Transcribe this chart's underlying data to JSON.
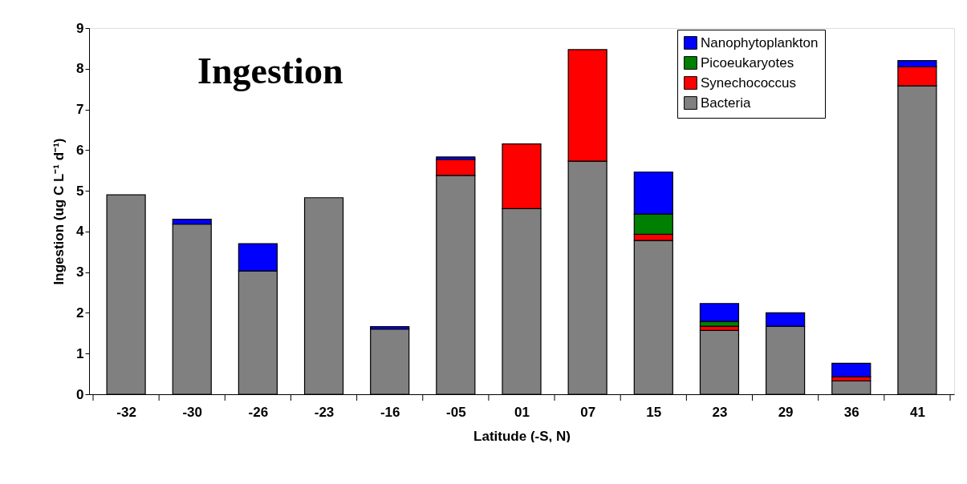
{
  "chart_data": {
    "type": "bar",
    "title": "Ingestion",
    "xlabel": "Latitude (-S, N)",
    "ylabel": "Ingestion (ug C L⁻¹ d⁻¹)",
    "categories": [
      "-32",
      "-30",
      "-26",
      "-23",
      "-16",
      "-05",
      "01",
      "07",
      "15",
      "23",
      "29",
      "36",
      "41"
    ],
    "stacked": true,
    "ylim": [
      0,
      9
    ],
    "yticks": [
      0,
      1,
      2,
      3,
      4,
      5,
      6,
      7,
      8,
      9
    ],
    "grid": false,
    "legend": "top right",
    "series": [
      {
        "name": "Bacteria",
        "color": "#808080",
        "values": [
          4.9,
          4.18,
          3.03,
          4.83,
          1.6,
          5.38,
          4.56,
          5.73,
          3.78,
          1.57,
          1.67,
          0.33,
          7.58
        ]
      },
      {
        "name": "Synechococcus",
        "color": "#ff0000",
        "values": [
          null,
          null,
          null,
          null,
          null,
          0.39,
          1.59,
          2.74,
          0.15,
          0.1,
          null,
          0.1,
          0.47
        ]
      },
      {
        "name": "Picoeukaryotes",
        "color": "#008000",
        "values": [
          null,
          null,
          null,
          null,
          null,
          null,
          null,
          null,
          0.5,
          0.12,
          null,
          null,
          null
        ]
      },
      {
        "name": "Nanophytoplankton",
        "color": "#0000ff",
        "values": [
          null,
          0.12,
          0.67,
          null,
          0.06,
          0.06,
          null,
          null,
          1.03,
          0.44,
          0.33,
          0.33,
          0.15
        ]
      }
    ]
  }
}
